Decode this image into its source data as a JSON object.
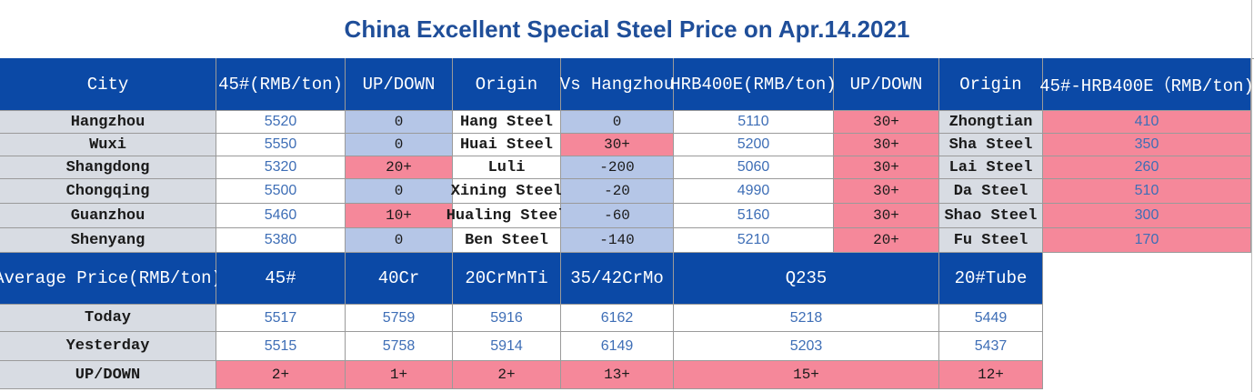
{
  "title": "China Excellent Special Steel Price on Apr.14.2021",
  "colors": {
    "header_bg": "#0B49A6",
    "header_text": "#ffffff",
    "title_text": "#1F4E99",
    "label_bg": "#D8DCE3",
    "flat_bg": "#B5C6E7",
    "up_bg": "#F5889A",
    "number_text": "#3E6EB6"
  },
  "price_table": {
    "headers": [
      "City",
      "45#(RMB/ton)",
      "UP/DOWN",
      "Origin",
      "Vs Hangzhou",
      "HRB400E(RMB/ton)",
      "UP/DOWN",
      "Origin",
      "45#-HRB400E（RMB/ton)"
    ],
    "rows": [
      {
        "city": "Hangzhou",
        "price_45": "5520",
        "updown_45": "0",
        "origin_45": "Hang Steel",
        "vs_hangzhou": "0",
        "hrb400e": "5110",
        "updown_hrb": "30+",
        "origin_hrb": "Zhongtian",
        "spread": "410"
      },
      {
        "city": "Wuxi",
        "price_45": "5550",
        "updown_45": "0",
        "origin_45": "Huai Steel",
        "vs_hangzhou": "30+",
        "hrb400e": "5200",
        "updown_hrb": "30+",
        "origin_hrb": "Sha Steel",
        "spread": "350"
      },
      {
        "city": "Shangdong",
        "price_45": "5320",
        "updown_45": "20+",
        "origin_45": "Luli",
        "vs_hangzhou": "-200",
        "hrb400e": "5060",
        "updown_hrb": "30+",
        "origin_hrb": "Lai Steel",
        "spread": "260"
      },
      {
        "city": "Chongqing",
        "price_45": "5500",
        "updown_45": "0",
        "origin_45": "Xining Steel",
        "vs_hangzhou": "-20",
        "hrb400e": "4990",
        "updown_hrb": "30+",
        "origin_hrb": "Da Steel",
        "spread": "510"
      },
      {
        "city": "Guanzhou",
        "price_45": "5460",
        "updown_45": "10+",
        "origin_45": "Hualing Steel",
        "vs_hangzhou": "-60",
        "hrb400e": "5160",
        "updown_hrb": "30+",
        "origin_hrb": "Shao Steel",
        "spread": "300"
      },
      {
        "city": "Shenyang",
        "price_45": "5380",
        "updown_45": "0",
        "origin_45": "Ben Steel",
        "vs_hangzhou": "-140",
        "hrb400e": "5210",
        "updown_hrb": "20+",
        "origin_hrb": "Fu Steel",
        "spread": "170"
      }
    ]
  },
  "average_table": {
    "headers": [
      "Average Price(RMB/ton)",
      "45#",
      "40Cr",
      "20CrMnTi",
      "35/42CrMo",
      "Q235",
      "20#Tube"
    ],
    "rows": [
      {
        "label": "Today",
        "values": [
          "5517",
          "5759",
          "5916",
          "6162",
          "5218",
          "5449"
        ]
      },
      {
        "label": "Yesterday",
        "values": [
          "5515",
          "5758",
          "5914",
          "6149",
          "5203",
          "5437"
        ]
      },
      {
        "label": "UP/DOWN",
        "values": [
          "2+",
          "1+",
          "2+",
          "13+",
          "15+",
          "12+"
        ]
      }
    ]
  }
}
